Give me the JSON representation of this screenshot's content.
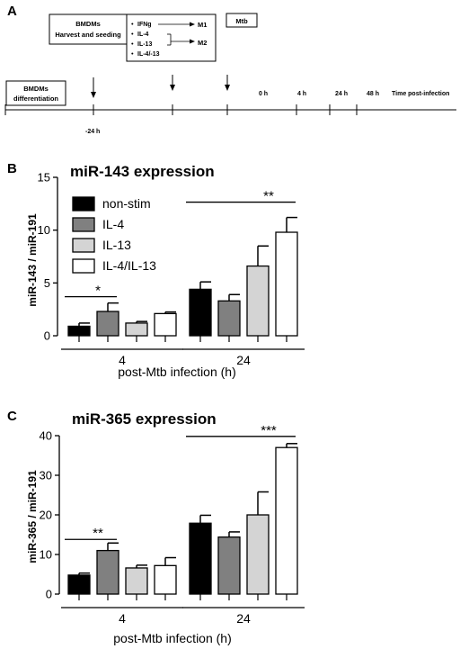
{
  "panel_a": {
    "letter": "A",
    "box_bmdm": [
      "BMDMs",
      "Harvest and seeding"
    ],
    "stim_items": [
      "IFNg",
      "IL-4",
      "IL-13",
      "IL-4/-13"
    ],
    "bullet": "•",
    "m1": "M1",
    "m2": "M2",
    "mtb": "Mtb",
    "diff_box": [
      "BMDMs",
      "differentiation"
    ],
    "time_labels": [
      "0 h",
      "4 h",
      "24 h",
      "48 h"
    ],
    "time_axis_label": "Time post-infection",
    "minus24": "-24  h"
  },
  "chart_data": [
    {
      "type": "bar",
      "panel_letter": "B",
      "title": "miR-143 expression",
      "ylabel": "miR-143 / miR-191",
      "xlabel": "post-Mtb infection (h)",
      "categories": [
        "4",
        "24"
      ],
      "ylim": [
        0,
        15
      ],
      "yticks": [
        0,
        5,
        10,
        15
      ],
      "ytick_labels": [
        "0",
        "5",
        "10",
        "15"
      ],
      "legend": {
        "placement": "top-left",
        "entries": [
          {
            "label": "non-stim",
            "color": "#000000"
          },
          {
            "label": "IL-4",
            "color": "#808080"
          },
          {
            "label": "IL-13",
            "color": "#d4d4d4"
          },
          {
            "label": "IL-4/IL-13",
            "color": "#ffffff"
          }
        ]
      },
      "series": [
        {
          "name": "non-stim",
          "values": [
            0.9,
            4.4
          ],
          "errors": [
            0.3,
            0.7
          ]
        },
        {
          "name": "IL-4",
          "values": [
            2.3,
            3.3
          ],
          "errors": [
            0.8,
            0.6
          ]
        },
        {
          "name": "IL-13",
          "values": [
            1.2,
            6.6
          ],
          "errors": [
            0.15,
            1.9
          ]
        },
        {
          "name": "IL-4/IL-13",
          "values": [
            2.1,
            9.8
          ],
          "errors": [
            0.15,
            1.4
          ]
        }
      ],
      "annotations": [
        {
          "text": "*",
          "group": 0,
          "from_series": 0,
          "to_series": 1
        },
        {
          "text": "**",
          "group": 1,
          "from_series": 0,
          "to_series": 3
        }
      ]
    },
    {
      "type": "bar",
      "panel_letter": "C",
      "title": "miR-365 expression",
      "ylabel": "miR-365 / miR-191",
      "xlabel": "post-Mtb infection (h)",
      "categories": [
        "4",
        "24"
      ],
      "ylim": [
        0,
        40
      ],
      "yticks": [
        0,
        10,
        20,
        30,
        40
      ],
      "ytick_labels": [
        "0",
        "10",
        "20",
        "30",
        "40"
      ],
      "series": [
        {
          "name": "non-stim",
          "values": [
            4.8,
            17.9
          ],
          "errors": [
            0.5,
            2.0
          ]
        },
        {
          "name": "IL-4",
          "values": [
            11.0,
            14.4
          ],
          "errors": [
            1.9,
            1.3
          ]
        },
        {
          "name": "IL-13",
          "values": [
            6.6,
            20.0
          ],
          "errors": [
            0.7,
            5.8
          ]
        },
        {
          "name": "IL-4/IL-13",
          "values": [
            7.2,
            37.0
          ],
          "errors": [
            2.0,
            1.0
          ]
        }
      ],
      "annotations": [
        {
          "text": "**",
          "group": 0,
          "from_series": 0,
          "to_series": 1
        },
        {
          "text": "***",
          "group": 1,
          "from_series": 0,
          "to_series": 3
        }
      ]
    }
  ]
}
